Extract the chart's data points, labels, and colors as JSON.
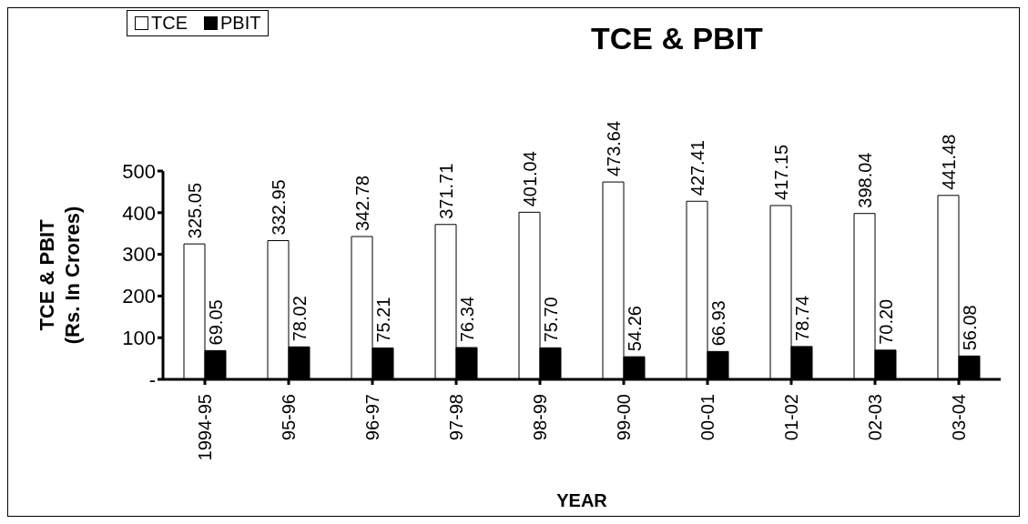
{
  "chart_data": {
    "type": "bar",
    "title": "TCE & PBIT",
    "xlabel": "YEAR",
    "ylabel": "TCE & PBIT\n(Rs. In Crores)",
    "categories": [
      "1994-95",
      "95-96",
      "96-97",
      "97-98",
      "98-99",
      "99-00",
      "00-01",
      "01-02",
      "02-03",
      "03-04"
    ],
    "series": [
      {
        "name": "TCE",
        "color": "#ffffff",
        "values": [
          325.05,
          332.95,
          342.78,
          371.71,
          401.04,
          473.64,
          427.41,
          417.15,
          398.04,
          441.48
        ],
        "value_labels": [
          "325.05",
          "332.95",
          "342.78",
          "371.71",
          "401.04",
          "473.64",
          "427.41",
          "417.15",
          "398.04",
          "441.48"
        ]
      },
      {
        "name": "PBIT",
        "color": "#000000",
        "values": [
          69.05,
          78.02,
          75.21,
          76.34,
          75.7,
          54.26,
          66.93,
          78.74,
          70.2,
          56.08
        ],
        "value_labels": [
          "69.05",
          "78.02",
          "75.21",
          "76.34",
          "75.70",
          "54.26",
          "66.93",
          "78.74",
          "70.20",
          "56.08"
        ]
      }
    ],
    "ylim": [
      0,
      500
    ],
    "yticks": [
      {
        "value": 0,
        "label": "-"
      },
      100,
      200,
      300,
      400,
      500
    ],
    "legend": "top left",
    "grid": false
  }
}
